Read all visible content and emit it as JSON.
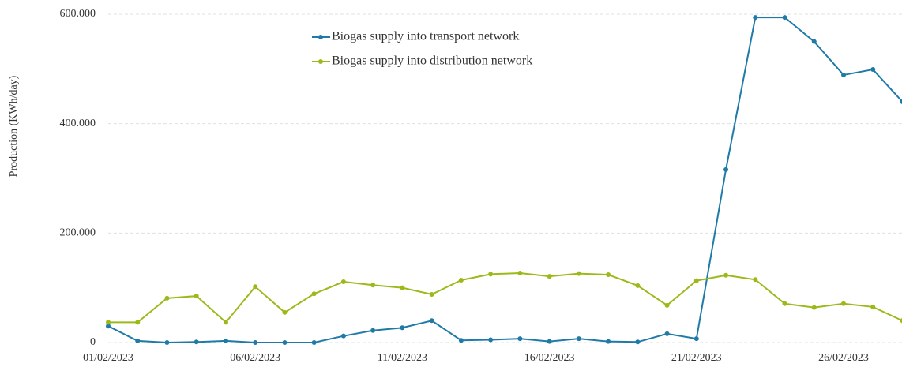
{
  "chart_data": {
    "type": "line",
    "y_label": "Production (KWh/day)",
    "categories": [
      "01/02/2023",
      null,
      null,
      null,
      null,
      "06/02/2023",
      null,
      null,
      null,
      null,
      "11/02/2023",
      null,
      null,
      null,
      null,
      "16/02/2023",
      null,
      null,
      null,
      null,
      "21/02/2023",
      null,
      null,
      null,
      null,
      "26/02/2023",
      null,
      null
    ],
    "series": [
      {
        "name": "Biogas supply into transport network",
        "color": "#1f7aa8",
        "values": [
          30000,
          3000,
          0,
          1000,
          3000,
          0,
          0,
          0,
          12000,
          22000,
          27000,
          40000,
          4000,
          5000,
          7000,
          2000,
          7000,
          2000,
          1000,
          16000,
          7000,
          316000,
          594000,
          594000,
          550000,
          489000,
          499000,
          440000
        ]
      },
      {
        "name": "Biogas supply into distribution network",
        "color": "#9bba1a",
        "values": [
          37000,
          37000,
          81000,
          85000,
          37000,
          102000,
          55000,
          89000,
          111000,
          105000,
          100000,
          88000,
          114000,
          125000,
          127000,
          121000,
          126000,
          124000,
          104000,
          68000,
          113000,
          123000,
          115000,
          71000,
          64000,
          71000,
          65000,
          40000
        ]
      }
    ],
    "ylim": [
      0,
      600000
    ],
    "yticks": [
      0,
      {
        "value": 200000,
        "label": "200.000"
      },
      {
        "value": 400000,
        "label": "400.000"
      },
      {
        "value": 600000,
        "label": "600.000"
      }
    ],
    "grid": true,
    "legend": "top"
  }
}
